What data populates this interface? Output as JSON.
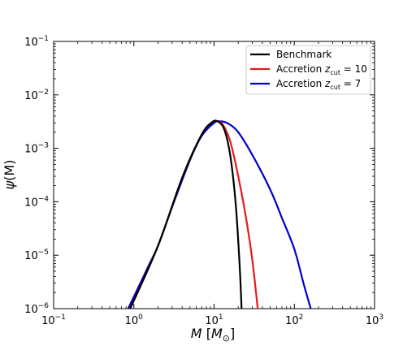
{
  "chart_data": {
    "type": "line",
    "xscale": "log",
    "yscale": "log",
    "xlim": [
      0.1,
      1000
    ],
    "ylim": [
      1e-06,
      0.1
    ],
    "xlabel": {
      "main": "M",
      "unit": "M",
      "unit_sub": "⊙"
    },
    "ylabel": {
      "main": "ψ",
      "arg": "(M)"
    },
    "xticks": [
      {
        "value": 0.1,
        "base": "10",
        "exp": "−1"
      },
      {
        "value": 1,
        "base": "10",
        "exp": "0"
      },
      {
        "value": 10,
        "base": "10",
        "exp": "1"
      },
      {
        "value": 100,
        "base": "10",
        "exp": "2"
      },
      {
        "value": 1000,
        "base": "10",
        "exp": "3"
      }
    ],
    "yticks": [
      {
        "value": 1e-06,
        "base": "10",
        "exp": "−6"
      },
      {
        "value": 1e-05,
        "base": "10",
        "exp": "−5"
      },
      {
        "value": 0.0001,
        "base": "10",
        "exp": "−4"
      },
      {
        "value": 0.001,
        "base": "10",
        "exp": "−3"
      },
      {
        "value": 0.01,
        "base": "10",
        "exp": "−2"
      },
      {
        "value": 0.1,
        "base": "10",
        "exp": "−1"
      }
    ],
    "legend_position": "top-right",
    "grid": false,
    "series": [
      {
        "name": "Benchmark",
        "legend": {
          "prefix": "Benchmark",
          "var": "",
          "sub": "",
          "suffix": ""
        },
        "color": "#000000",
        "points": [
          [
            0.9,
            1e-06
          ],
          [
            2,
            1.5e-05
          ],
          [
            4,
            0.00028
          ],
          [
            7,
            0.0018
          ],
          [
            9.5,
            0.0031
          ],
          [
            11,
            0.0032
          ],
          [
            13,
            0.0025
          ],
          [
            15,
            0.0012
          ],
          [
            17,
            0.00035
          ],
          [
            19,
            6e-05
          ],
          [
            21,
            5e-06
          ],
          [
            22,
            1e-06
          ]
        ]
      },
      {
        "name": "Accretion z_cut = 10",
        "legend": {
          "prefix": "Accretion ",
          "var": "z",
          "sub": "cut",
          "suffix": " = 10"
        },
        "color": "#e41a1c",
        "points": [
          [
            0.9,
            1e-06
          ],
          [
            2,
            1.5e-05
          ],
          [
            4,
            0.00028
          ],
          [
            7,
            0.0018
          ],
          [
            9.5,
            0.0031
          ],
          [
            11,
            0.0032
          ],
          [
            13,
            0.0027
          ],
          [
            16,
            0.0013
          ],
          [
            20,
            0.0003
          ],
          [
            25,
            5e-05
          ],
          [
            30,
            8e-06
          ],
          [
            35,
            1e-06
          ]
        ]
      },
      {
        "name": "Accretion z_cut = 7",
        "legend": {
          "prefix": "Accretion ",
          "var": "z",
          "sub": "cut",
          "suffix": " = 7"
        },
        "color": "#0000cc",
        "points": [
          [
            0.85,
            1e-06
          ],
          [
            1.5,
            6e-06
          ],
          [
            2,
            1.5e-05
          ],
          [
            3,
            8e-05
          ],
          [
            5,
            0.0006
          ],
          [
            7,
            0.0017
          ],
          [
            10,
            0.003
          ],
          [
            12,
            0.0032
          ],
          [
            15,
            0.0029
          ],
          [
            20,
            0.002
          ],
          [
            30,
            0.00075
          ],
          [
            50,
            0.00017
          ],
          [
            70,
            5e-05
          ],
          [
            100,
            1.3e-05
          ],
          [
            130,
            3e-06
          ],
          [
            160,
            1e-06
          ]
        ]
      }
    ]
  }
}
